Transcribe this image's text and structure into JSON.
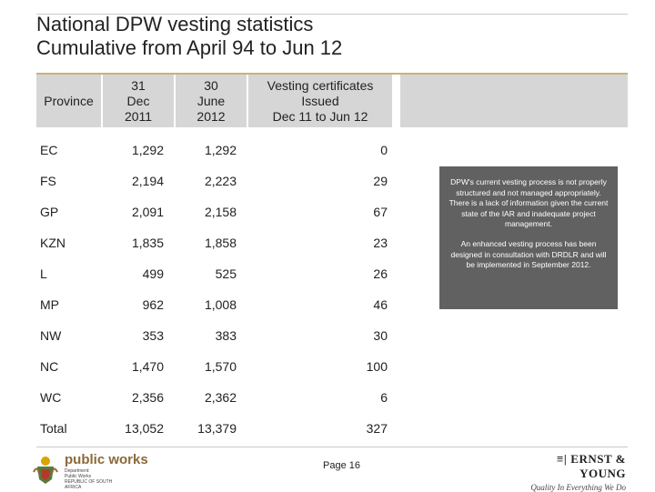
{
  "title": {
    "line1": "National DPW vesting statistics",
    "line2": "Cumulative from April 94 to Jun 12"
  },
  "table": {
    "headers": {
      "province": "Province",
      "col1": [
        "31",
        "Dec",
        "2011"
      ],
      "col2": [
        "30",
        "June",
        "2012"
      ],
      "col3": [
        "Vesting certificates",
        "Issued",
        "Dec 11 to Jun 12"
      ]
    },
    "rows": [
      {
        "province": "EC",
        "dec2011": "1,292",
        "jun2012": "1,292",
        "issued": "0"
      },
      {
        "province": "FS",
        "dec2011": "2,194",
        "jun2012": "2,223",
        "issued": "29"
      },
      {
        "province": "GP",
        "dec2011": "2,091",
        "jun2012": "2,158",
        "issued": "67"
      },
      {
        "province": "KZN",
        "dec2011": "1,835",
        "jun2012": "1,858",
        "issued": "23"
      },
      {
        "province": "L",
        "dec2011": "499",
        "jun2012": "525",
        "issued": "26"
      },
      {
        "province": "MP",
        "dec2011": "962",
        "jun2012": "1,008",
        "issued": "46"
      },
      {
        "province": "NW",
        "dec2011": "353",
        "jun2012": "383",
        "issued": "30"
      },
      {
        "province": "NC",
        "dec2011": "1,470",
        "jun2012": "1,570",
        "issued": "100"
      },
      {
        "province": "WC",
        "dec2011": "2,356",
        "jun2012": "2,362",
        "issued": "6"
      },
      {
        "province": "Total",
        "dec2011": "13,052",
        "jun2012": "13,379",
        "issued": "327"
      }
    ]
  },
  "note": {
    "paragraph1": "DPW's current vesting process is not properly structured and not managed appropriately. There is a lack of information given the current state of the IAR and inadequate project management.",
    "paragraph2": "An enhanced vesting process has been designed in consultation with DRDLR and will be implemented in September 2012."
  },
  "footer": {
    "page": "Page 16",
    "left_logo": {
      "name": "public works",
      "subtitle": [
        "Department:",
        "Public Works",
        "REPUBLIC OF SOUTH AFRICA"
      ]
    },
    "right_logo": {
      "name": "ERNST & YOUNG",
      "tagline": "Quality In Everything We Do"
    }
  }
}
